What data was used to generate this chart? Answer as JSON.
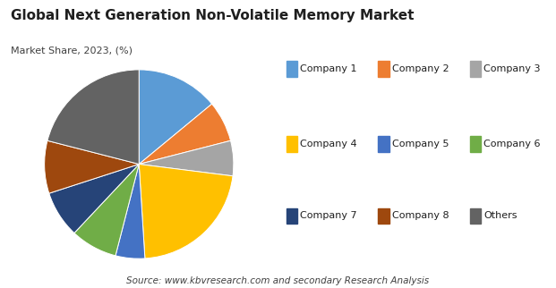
{
  "title": "Global Next Generation Non-Volatile Memory Market",
  "subtitle": "Market Share, 2023, (%)",
  "source": "Source: www.kbvresearch.com and secondary Research Analysis",
  "labels": [
    "Company 1",
    "Company 2",
    "Company 3",
    "Company 4",
    "Company 5",
    "Company 6",
    "Company 7",
    "Company 8",
    "Others"
  ],
  "values": [
    14,
    7,
    6,
    22,
    5,
    8,
    8,
    9,
    21
  ],
  "colors": [
    "#5B9BD5",
    "#ED7D31",
    "#A5A5A5",
    "#FFC000",
    "#4472C4",
    "#70AD47",
    "#264478",
    "#9E480E",
    "#636363"
  ],
  "startangle": 90,
  "legend_rows": [
    [
      0,
      1,
      2
    ],
    [
      3,
      4,
      5
    ],
    [
      6,
      7,
      8
    ]
  ],
  "background_color": "#FFFFFF",
  "title_fontsize": 11,
  "subtitle_fontsize": 8,
  "legend_fontsize": 8,
  "source_fontsize": 7.5
}
